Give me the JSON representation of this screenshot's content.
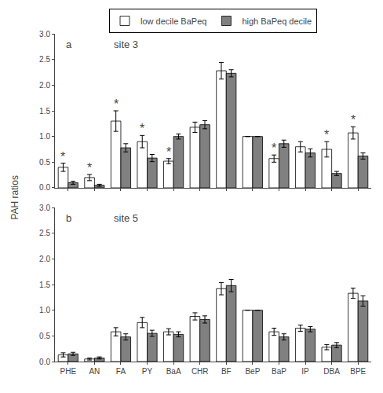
{
  "chart_data": [
    {
      "type": "bar",
      "categories": [
        "PHE",
        "AN",
        "FA",
        "PY",
        "BaA",
        "CHR",
        "BF",
        "BeP",
        "BaP",
        "IP",
        "DBA",
        "BPE"
      ],
      "series": [
        {
          "name": "low decile BaPeq",
          "color": "#ffffff",
          "values": [
            0.4,
            0.2,
            1.3,
            0.9,
            0.52,
            1.18,
            2.28,
            1.0,
            0.57,
            0.8,
            0.75,
            1.07
          ],
          "errors": [
            0.08,
            0.06,
            0.2,
            0.12,
            0.05,
            0.1,
            0.16,
            0.0,
            0.07,
            0.1,
            0.15,
            0.12
          ]
        },
        {
          "name": "high BaPeq decile",
          "color": "#808080",
          "values": [
            0.1,
            0.05,
            0.78,
            0.58,
            1.0,
            1.23,
            2.23,
            1.0,
            0.86,
            0.68,
            0.28,
            0.62
          ],
          "errors": [
            0.03,
            0.02,
            0.08,
            0.07,
            0.05,
            0.08,
            0.07,
            0.0,
            0.07,
            0.08,
            0.04,
            0.06
          ]
        }
      ],
      "ylabel": "PAH ratios",
      "ylim": [
        0,
        3.0
      ],
      "yticks": [
        {
          "value": 0,
          "label": "0.0"
        },
        0.5,
        {
          "value": 1,
          "label": "1.0"
        },
        1.5,
        {
          "value": 2,
          "label": "2.0"
        },
        2.5,
        {
          "value": 3,
          "label": "3.0"
        }
      ],
      "grid": false,
      "legend": "top",
      "tick_labels": "y",
      "annotations": [
        {
          "text": "a"
        },
        {
          "text": "site 3"
        },
        {
          "text": "*",
          "x": "PHE",
          "series": "low decile BaPeq"
        },
        {
          "text": "*",
          "x": "AN",
          "series": "low decile BaPeq"
        },
        {
          "text": "*",
          "x": "FA",
          "series": "low decile BaPeq"
        },
        {
          "text": "*",
          "x": "PY",
          "series": "low decile BaPeq"
        },
        {
          "text": "*",
          "x": "BaA",
          "series": "low decile BaPeq"
        },
        {
          "text": "*",
          "x": "BaP",
          "series": "low decile BaPeq"
        },
        {
          "text": "*",
          "x": "DBA",
          "series": "low decile BaPeq"
        },
        {
          "text": "*",
          "x": "BPE",
          "series": "low decile BaPeq"
        }
      ]
    },
    {
      "type": "bar",
      "categories": [
        "PHE",
        "AN",
        "FA",
        "PY",
        "BaA",
        "CHR",
        "BF",
        "BeP",
        "BaP",
        "IP",
        "DBA",
        "BPE"
      ],
      "series": [
        {
          "name": "low decile BaPeq",
          "color": "#ffffff",
          "values": [
            0.13,
            0.05,
            0.58,
            0.76,
            0.58,
            0.88,
            1.42,
            1.0,
            0.58,
            0.65,
            0.28,
            1.33
          ],
          "errors": [
            0.04,
            0.02,
            0.08,
            0.1,
            0.06,
            0.07,
            0.12,
            0.0,
            0.07,
            0.06,
            0.05,
            0.1
          ]
        },
        {
          "name": "high BaPeq decile",
          "color": "#808080",
          "values": [
            0.15,
            0.07,
            0.48,
            0.55,
            0.53,
            0.82,
            1.48,
            1.0,
            0.48,
            0.63,
            0.32,
            1.18
          ],
          "errors": [
            0.03,
            0.02,
            0.06,
            0.06,
            0.05,
            0.07,
            0.12,
            0.0,
            0.06,
            0.05,
            0.05,
            0.1
          ]
        }
      ],
      "ylim": [
        0,
        3.0
      ],
      "yticks": [
        {
          "value": 0,
          "label": "0.0"
        },
        0.5,
        {
          "value": 1,
          "label": "1.0"
        },
        1.5,
        {
          "value": 2,
          "label": "2.0"
        },
        2.5,
        {
          "value": 3,
          "label": "3.0"
        }
      ],
      "grid": false,
      "annotations": [
        {
          "text": "b"
        },
        {
          "text": "site 5"
        }
      ]
    }
  ]
}
